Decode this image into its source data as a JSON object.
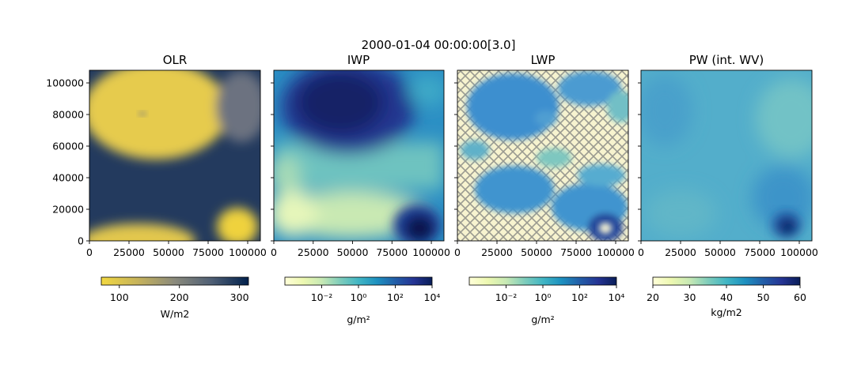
{
  "suptitle": "2000-01-04 00:00:00[3.0]",
  "chart_data": [
    {
      "type": "heatmap",
      "title": "OLR",
      "xlim": [
        0,
        108000
      ],
      "ylim": [
        0,
        108000
      ],
      "x_ticks": [
        "0",
        "25000",
        "50000",
        "75000",
        "100000"
      ],
      "y_ticks": [
        "0",
        "20000",
        "40000",
        "60000",
        "80000",
        "100000"
      ],
      "colorbar": {
        "label": "W/m2",
        "min": 70,
        "max": 315,
        "scale": "linear",
        "ticks": [
          "100",
          "200",
          "300"
        ],
        "colormap": "cividis_r"
      },
      "features": [
        {
          "kind": "low-OLR cloud",
          "x": 35000,
          "y": 88000,
          "value": 85
        },
        {
          "kind": "low-OLR cloud",
          "x": 45000,
          "y": 0,
          "value": 90
        },
        {
          "kind": "low-OLR cloud",
          "x": 95000,
          "y": 8000,
          "value": 85
        },
        {
          "kind": "clear sky",
          "x": 55000,
          "y": 30000,
          "value": 295
        }
      ]
    },
    {
      "type": "heatmap",
      "title": "IWP",
      "xlim": [
        0,
        108000
      ],
      "ylim": [
        0,
        108000
      ],
      "x_ticks": [
        "0",
        "25000",
        "50000",
        "75000",
        "100000"
      ],
      "colorbar": {
        "label": "g/m²",
        "min": 0.0001,
        "max": 10000,
        "scale": "log",
        "ticks": [
          "10⁻²",
          "10⁰",
          "10²",
          "10⁴"
        ],
        "colormap": "YlGnBu"
      },
      "features": [
        {
          "kind": "ice maximum",
          "x": 40000,
          "y": 88000,
          "value": 5000
        },
        {
          "kind": "ice maximum",
          "x": 93000,
          "y": 6000,
          "value": 8000
        },
        {
          "kind": "ice minimum",
          "x": 55000,
          "y": 35000,
          "value": 0.01
        }
      ]
    },
    {
      "type": "heatmap",
      "title": "LWP",
      "xlim": [
        0,
        108000
      ],
      "ylim": [
        0,
        108000
      ],
      "x_ticks": [
        "0",
        "25000",
        "50000",
        "75000",
        "100000"
      ],
      "colorbar": {
        "label": "g/m²",
        "min": 0.0001,
        "max": 10000,
        "scale": "log",
        "ticks": [
          "10⁻²",
          "10⁰",
          "10²",
          "10⁴"
        ],
        "colormap": "YlGnBu"
      },
      "features": [
        {
          "kind": "liquid maximum",
          "x": 92000,
          "y": 8000,
          "value": 3000
        },
        {
          "kind": "liquid blob",
          "x": 30000,
          "y": 88000,
          "value": 50
        },
        {
          "kind": "liquid blob",
          "x": 30000,
          "y": 28000,
          "value": 40
        },
        {
          "kind": "no-liquid region (hatched)",
          "x": 65000,
          "y": 55000,
          "value": 0
        }
      ]
    },
    {
      "type": "heatmap",
      "title": "PW (int. WV)",
      "xlim": [
        0,
        108000
      ],
      "ylim": [
        0,
        108000
      ],
      "x_ticks": [
        "0",
        "25000",
        "50000",
        "75000",
        "100000"
      ],
      "colorbar": {
        "label": "kg/m2",
        "min": 20,
        "max": 60,
        "scale": "linear",
        "ticks": [
          "20",
          "30",
          "40",
          "50",
          "60"
        ],
        "colormap": "YlGnBu"
      },
      "features": [
        {
          "kind": "moist maximum",
          "x": 92000,
          "y": 8000,
          "value": 58
        },
        {
          "kind": "background",
          "x": 50000,
          "y": 60000,
          "value": 38
        }
      ]
    }
  ]
}
